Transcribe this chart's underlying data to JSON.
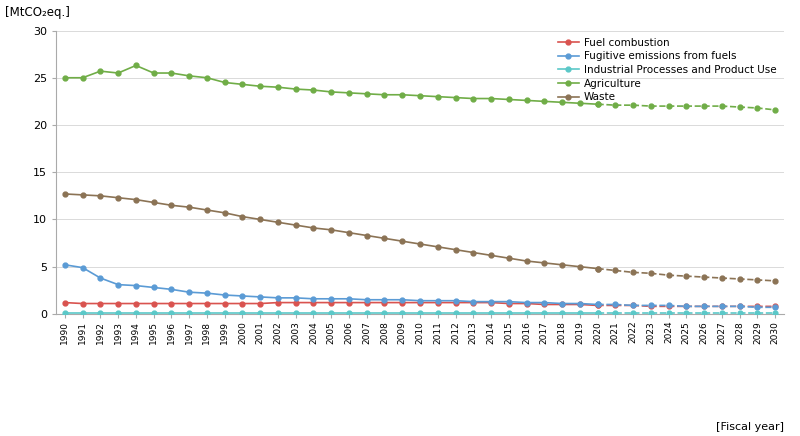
{
  "ylabel": "[MtCO₂eq.]",
  "xlabel": "[Fiscal year]",
  "ylim": [
    0,
    30
  ],
  "yticks": [
    0,
    5,
    10,
    15,
    20,
    25,
    30
  ],
  "solid_years": [
    1990,
    1991,
    1992,
    1993,
    1994,
    1995,
    1996,
    1997,
    1998,
    1999,
    2000,
    2001,
    2002,
    2003,
    2004,
    2005,
    2006,
    2007,
    2008,
    2009,
    2010,
    2011,
    2012,
    2013,
    2014,
    2015,
    2016,
    2017,
    2018,
    2019,
    2020
  ],
  "dash_years": [
    2020,
    2021,
    2022,
    2023,
    2024,
    2025,
    2026,
    2027,
    2028,
    2029,
    2030
  ],
  "fuel_combustion_solid": [
    1.2,
    1.1,
    1.1,
    1.1,
    1.1,
    1.1,
    1.1,
    1.1,
    1.1,
    1.1,
    1.1,
    1.1,
    1.2,
    1.2,
    1.2,
    1.2,
    1.2,
    1.2,
    1.2,
    1.2,
    1.2,
    1.2,
    1.2,
    1.2,
    1.2,
    1.1,
    1.1,
    1.0,
    1.0,
    1.0,
    0.9
  ],
  "fuel_combustion_dash": [
    0.9,
    0.9,
    0.9,
    0.8,
    0.8,
    0.8,
    0.8,
    0.8,
    0.8,
    0.8,
    0.8
  ],
  "fugitive_solid": [
    5.2,
    4.9,
    3.8,
    3.1,
    3.0,
    2.8,
    2.6,
    2.3,
    2.2,
    2.0,
    1.9,
    1.8,
    1.7,
    1.7,
    1.6,
    1.6,
    1.6,
    1.5,
    1.5,
    1.5,
    1.4,
    1.4,
    1.4,
    1.3,
    1.3,
    1.3,
    1.2,
    1.2,
    1.1,
    1.1,
    1.0
  ],
  "fugitive_dash": [
    1.0,
    1.0,
    0.9,
    0.9,
    0.9,
    0.8,
    0.8,
    0.8,
    0.8,
    0.7,
    0.7
  ],
  "industrial_solid": [
    0.05,
    0.05,
    0.05,
    0.05,
    0.05,
    0.05,
    0.05,
    0.05,
    0.05,
    0.05,
    0.05,
    0.05,
    0.05,
    0.05,
    0.05,
    0.05,
    0.05,
    0.05,
    0.05,
    0.05,
    0.05,
    0.05,
    0.05,
    0.05,
    0.05,
    0.05,
    0.05,
    0.05,
    0.05,
    0.05,
    0.05
  ],
  "industrial_dash": [
    0.05,
    0.05,
    0.05,
    0.05,
    0.05,
    0.05,
    0.05,
    0.05,
    0.05,
    0.05,
    0.05
  ],
  "agriculture_solid": [
    25.0,
    25.0,
    25.7,
    25.5,
    26.3,
    25.5,
    25.5,
    25.2,
    25.0,
    24.5,
    24.3,
    24.1,
    24.0,
    23.8,
    23.7,
    23.5,
    23.4,
    23.3,
    23.2,
    23.2,
    23.1,
    23.0,
    22.9,
    22.8,
    22.8,
    22.7,
    22.6,
    22.5,
    22.4,
    22.3,
    22.2
  ],
  "agriculture_dash": [
    22.2,
    22.1,
    22.1,
    22.0,
    22.0,
    22.0,
    22.0,
    22.0,
    21.9,
    21.8,
    21.6
  ],
  "waste_solid": [
    12.7,
    12.6,
    12.5,
    12.3,
    12.1,
    11.8,
    11.5,
    11.3,
    11.0,
    10.7,
    10.3,
    10.0,
    9.7,
    9.4,
    9.1,
    8.9,
    8.6,
    8.3,
    8.0,
    7.7,
    7.4,
    7.1,
    6.8,
    6.5,
    6.2,
    5.9,
    5.6,
    5.4,
    5.2,
    5.0,
    4.8
  ],
  "waste_dash": [
    4.8,
    4.6,
    4.4,
    4.3,
    4.1,
    4.0,
    3.9,
    3.8,
    3.7,
    3.6,
    3.5
  ],
  "color_fuel": "#d9534f",
  "color_fugitive": "#5b9bd5",
  "color_industrial": "#5bc8c8",
  "color_agriculture": "#70ad47",
  "color_waste": "#8b7355",
  "legend_labels": [
    "Fuel combustion",
    "Fugitive emissions from fuels",
    "Industrial Processes and Product Use",
    "Agriculture",
    "Waste"
  ],
  "marker_size": 3.5,
  "linewidth": 1.2
}
